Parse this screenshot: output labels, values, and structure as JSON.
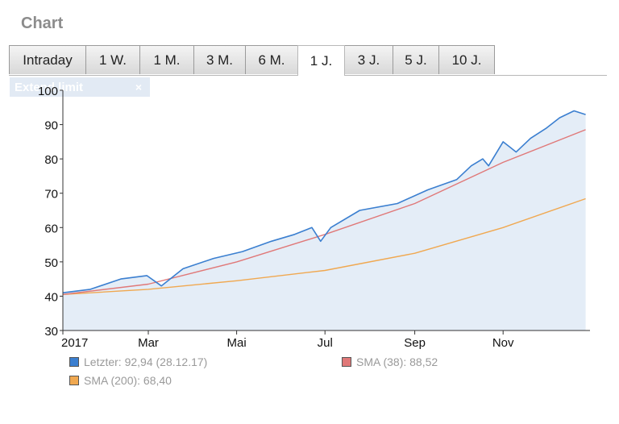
{
  "heading": "Chart",
  "tabs": [
    {
      "label": "Intraday",
      "active": false
    },
    {
      "label": "1 W.",
      "active": false
    },
    {
      "label": "1 M.",
      "active": false
    },
    {
      "label": "3 M.",
      "active": false
    },
    {
      "label": "6 M.",
      "active": false
    },
    {
      "label": "1 J.",
      "active": true
    },
    {
      "label": "3 J.",
      "active": false
    },
    {
      "label": "5 J.",
      "active": false
    },
    {
      "label": "10 J.",
      "active": false
    }
  ],
  "range_chip": {
    "label": "Extend limit",
    "close": "×"
  },
  "legend": {
    "last": "Letzter: 92,94 (28.12.17)",
    "sma38": "SMA (38): 88,52",
    "sma200": "SMA (200): 68,40"
  },
  "colors": {
    "last": "#3b7fd0",
    "sma38": "#e07878",
    "sma200": "#f0a850",
    "fill": "#e4edf7"
  },
  "chart_data": {
    "type": "line",
    "title": "",
    "xlabel": "",
    "ylabel": "",
    "ylim": [
      30,
      100
    ],
    "yticks": [
      30,
      40,
      50,
      60,
      70,
      80,
      90,
      100
    ],
    "x_range": [
      "2017-01-01",
      "2017-12-31"
    ],
    "xticks": [
      {
        "label": "2017",
        "date": "2017-01-01"
      },
      {
        "label": "Mar",
        "date": "2017-03-01"
      },
      {
        "label": "Mai",
        "date": "2017-05-01"
      },
      {
        "label": "Jul",
        "date": "2017-07-01"
      },
      {
        "label": "Sep",
        "date": "2017-09-01"
      },
      {
        "label": "Nov",
        "date": "2017-11-01"
      }
    ],
    "grid": false,
    "legend_position": "bottom",
    "series": [
      {
        "name": "Letzter",
        "x": [
          "2017-01-01",
          "2017-01-20",
          "2017-02-10",
          "2017-02-28",
          "2017-03-10",
          "2017-03-25",
          "2017-04-15",
          "2017-05-05",
          "2017-05-25",
          "2017-06-10",
          "2017-06-22",
          "2017-06-28",
          "2017-07-05",
          "2017-07-25",
          "2017-08-20",
          "2017-09-10",
          "2017-09-30",
          "2017-10-10",
          "2017-10-18",
          "2017-10-22",
          "2017-11-01",
          "2017-11-10",
          "2017-11-20",
          "2017-12-01",
          "2017-12-10",
          "2017-12-20",
          "2017-12-28"
        ],
        "y": [
          41,
          42,
          45,
          46,
          43,
          48,
          51,
          53,
          56,
          58,
          60,
          56,
          60,
          65,
          67,
          71,
          74,
          78,
          80,
          78,
          85,
          82,
          86,
          89,
          92,
          94,
          92.94
        ]
      },
      {
        "name": "SMA (38)",
        "x": [
          "2017-01-01",
          "2017-03-01",
          "2017-05-01",
          "2017-07-01",
          "2017-09-01",
          "2017-11-01",
          "2017-12-28"
        ],
        "y": [
          40.5,
          43.5,
          50,
          58,
          67,
          79,
          88.52
        ]
      },
      {
        "name": "SMA (200)",
        "x": [
          "2017-01-01",
          "2017-03-01",
          "2017-05-01",
          "2017-07-01",
          "2017-09-01",
          "2017-11-01",
          "2017-12-28"
        ],
        "y": [
          40.5,
          42,
          44.5,
          47.5,
          52.5,
          60,
          68.4
        ]
      }
    ]
  }
}
